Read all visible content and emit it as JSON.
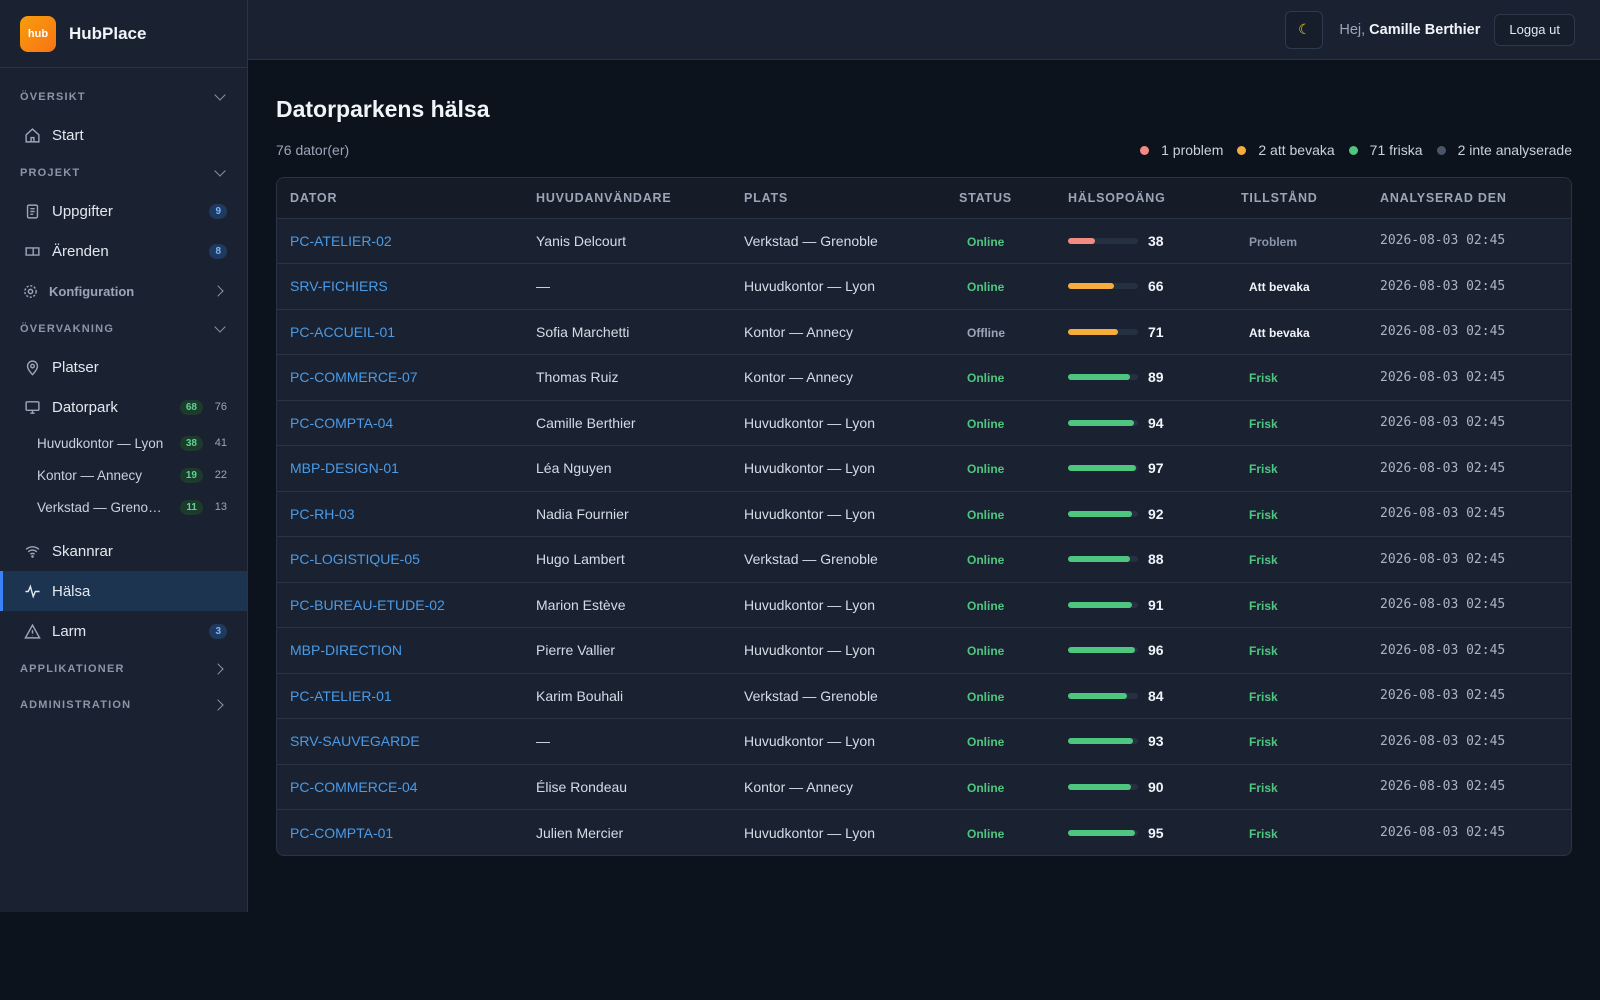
{
  "app": {
    "logo_text": "hub",
    "name": "HubPlace"
  },
  "header": {
    "theme_icon": "moon-icon",
    "greeting_prefix": "Hej,",
    "user_name": "Camille Berthier",
    "logout_label": "Logga ut"
  },
  "sidebar": {
    "sections": {
      "overview": "ÖVERSIKT",
      "project": "PROJEKT",
      "monitoring": "ÖVERVAKNING",
      "applications": "APPLIKATIONER",
      "administration": "ADMINISTRATION"
    },
    "items": {
      "start": {
        "label": "Start",
        "icon": "home-icon"
      },
      "tasks": {
        "label": "Uppgifter",
        "badge": "9",
        "icon": "clipboard-icon"
      },
      "tickets": {
        "label": "Ärenden",
        "badge": "8",
        "icon": "ticket-icon"
      },
      "config": {
        "label": "Konfiguration",
        "icon": "gear-icon"
      },
      "places": {
        "label": "Platser",
        "icon": "map-pin-icon"
      },
      "fleet": {
        "label": "Datorpark",
        "badge": "68",
        "count": "76",
        "icon": "monitor-icon"
      },
      "scanners": {
        "label": "Skannrar",
        "icon": "wifi-icon"
      },
      "health": {
        "label": "Hälsa",
        "icon": "activity-icon"
      },
      "alarms": {
        "label": "Larm",
        "badge": "3",
        "icon": "alert-triangle-icon"
      }
    },
    "fleet_sub": [
      {
        "label": "Huvudkontor — Lyon",
        "badge": "38",
        "count": "41"
      },
      {
        "label": "Kontor — Annecy",
        "badge": "19",
        "count": "22"
      },
      {
        "label": "Verkstad — Grenoble",
        "badge": "11",
        "count": "13"
      }
    ]
  },
  "main": {
    "title": "Datorparkens hälsa",
    "count_label": "76 dator(er)",
    "legend": [
      {
        "label": "1 problem",
        "color": "#f28b82"
      },
      {
        "label": "2 att bevaka",
        "color": "#f6ad3c"
      },
      {
        "label": "71 friska",
        "color": "#4fc67f"
      },
      {
        "label": "2 inte analyserade",
        "color": "#4b5568"
      }
    ],
    "columns": [
      "DATOR",
      "HUVUDANVÄNDARE",
      "PLATS",
      "STATUS",
      "HÄLSOPOÄNG",
      "TILLSTÅND",
      "ANALYSERAD DEN"
    ],
    "rows": [
      {
        "dator": "PC-ATELIER-02",
        "user": "Yanis Delcourt",
        "place": "Verkstad — Grenoble",
        "status": "Online",
        "score": 38,
        "condition": "Problem",
        "analyzed": "2026-08-03 02:45"
      },
      {
        "dator": "SRV-FICHIERS",
        "user": "—",
        "place": "Huvudkontor — Lyon",
        "status": "Online",
        "score": 66,
        "condition": "Att bevaka",
        "analyzed": "2026-08-03 02:45"
      },
      {
        "dator": "PC-ACCUEIL-01",
        "user": "Sofia Marchetti",
        "place": "Kontor — Annecy",
        "status": "Offline",
        "score": 71,
        "condition": "Att bevaka",
        "analyzed": "2026-08-03 02:45"
      },
      {
        "dator": "PC-COMMERCE-07",
        "user": "Thomas Ruiz",
        "place": "Kontor — Annecy",
        "status": "Online",
        "score": 89,
        "condition": "Frisk",
        "analyzed": "2026-08-03 02:45"
      },
      {
        "dator": "PC-COMPTA-04",
        "user": "Camille Berthier",
        "place": "Huvudkontor — Lyon",
        "status": "Online",
        "score": 94,
        "condition": "Frisk",
        "analyzed": "2026-08-03 02:45"
      },
      {
        "dator": "MBP-DESIGN-01",
        "user": "Léa Nguyen",
        "place": "Huvudkontor — Lyon",
        "status": "Online",
        "score": 97,
        "condition": "Frisk",
        "analyzed": "2026-08-03 02:45"
      },
      {
        "dator": "PC-RH-03",
        "user": "Nadia Fournier",
        "place": "Huvudkontor — Lyon",
        "status": "Online",
        "score": 92,
        "condition": "Frisk",
        "analyzed": "2026-08-03 02:45"
      },
      {
        "dator": "PC-LOGISTIQUE-05",
        "user": "Hugo Lambert",
        "place": "Verkstad — Grenoble",
        "status": "Online",
        "score": 88,
        "condition": "Frisk",
        "analyzed": "2026-08-03 02:45"
      },
      {
        "dator": "PC-BUREAU-ETUDE-02",
        "user": "Marion Estève",
        "place": "Huvudkontor — Lyon",
        "status": "Online",
        "score": 91,
        "condition": "Frisk",
        "analyzed": "2026-08-03 02:45"
      },
      {
        "dator": "MBP-DIRECTION",
        "user": "Pierre Vallier",
        "place": "Huvudkontor — Lyon",
        "status": "Online",
        "score": 96,
        "condition": "Frisk",
        "analyzed": "2026-08-03 02:45"
      },
      {
        "dator": "PC-ATELIER-01",
        "user": "Karim Bouhali",
        "place": "Verkstad — Grenoble",
        "status": "Online",
        "score": 84,
        "condition": "Frisk",
        "analyzed": "2026-08-03 02:45"
      },
      {
        "dator": "SRV-SAUVEGARDE",
        "user": "—",
        "place": "Huvudkontor — Lyon",
        "status": "Online",
        "score": 93,
        "condition": "Frisk",
        "analyzed": "2026-08-03 02:45"
      },
      {
        "dator": "PC-COMMERCE-04",
        "user": "Élise Rondeau",
        "place": "Kontor — Annecy",
        "status": "Online",
        "score": 90,
        "condition": "Frisk",
        "analyzed": "2026-08-03 02:45"
      },
      {
        "dator": "PC-COMPTA-01",
        "user": "Julien Mercier",
        "place": "Huvudkontor — Lyon",
        "status": "Online",
        "score": 95,
        "condition": "Frisk",
        "analyzed": "2026-08-03 02:45"
      }
    ],
    "score_colors": {
      "problem": "#f28b82",
      "watch": "#f6ad3c",
      "ok": "#4fc67f"
    }
  }
}
